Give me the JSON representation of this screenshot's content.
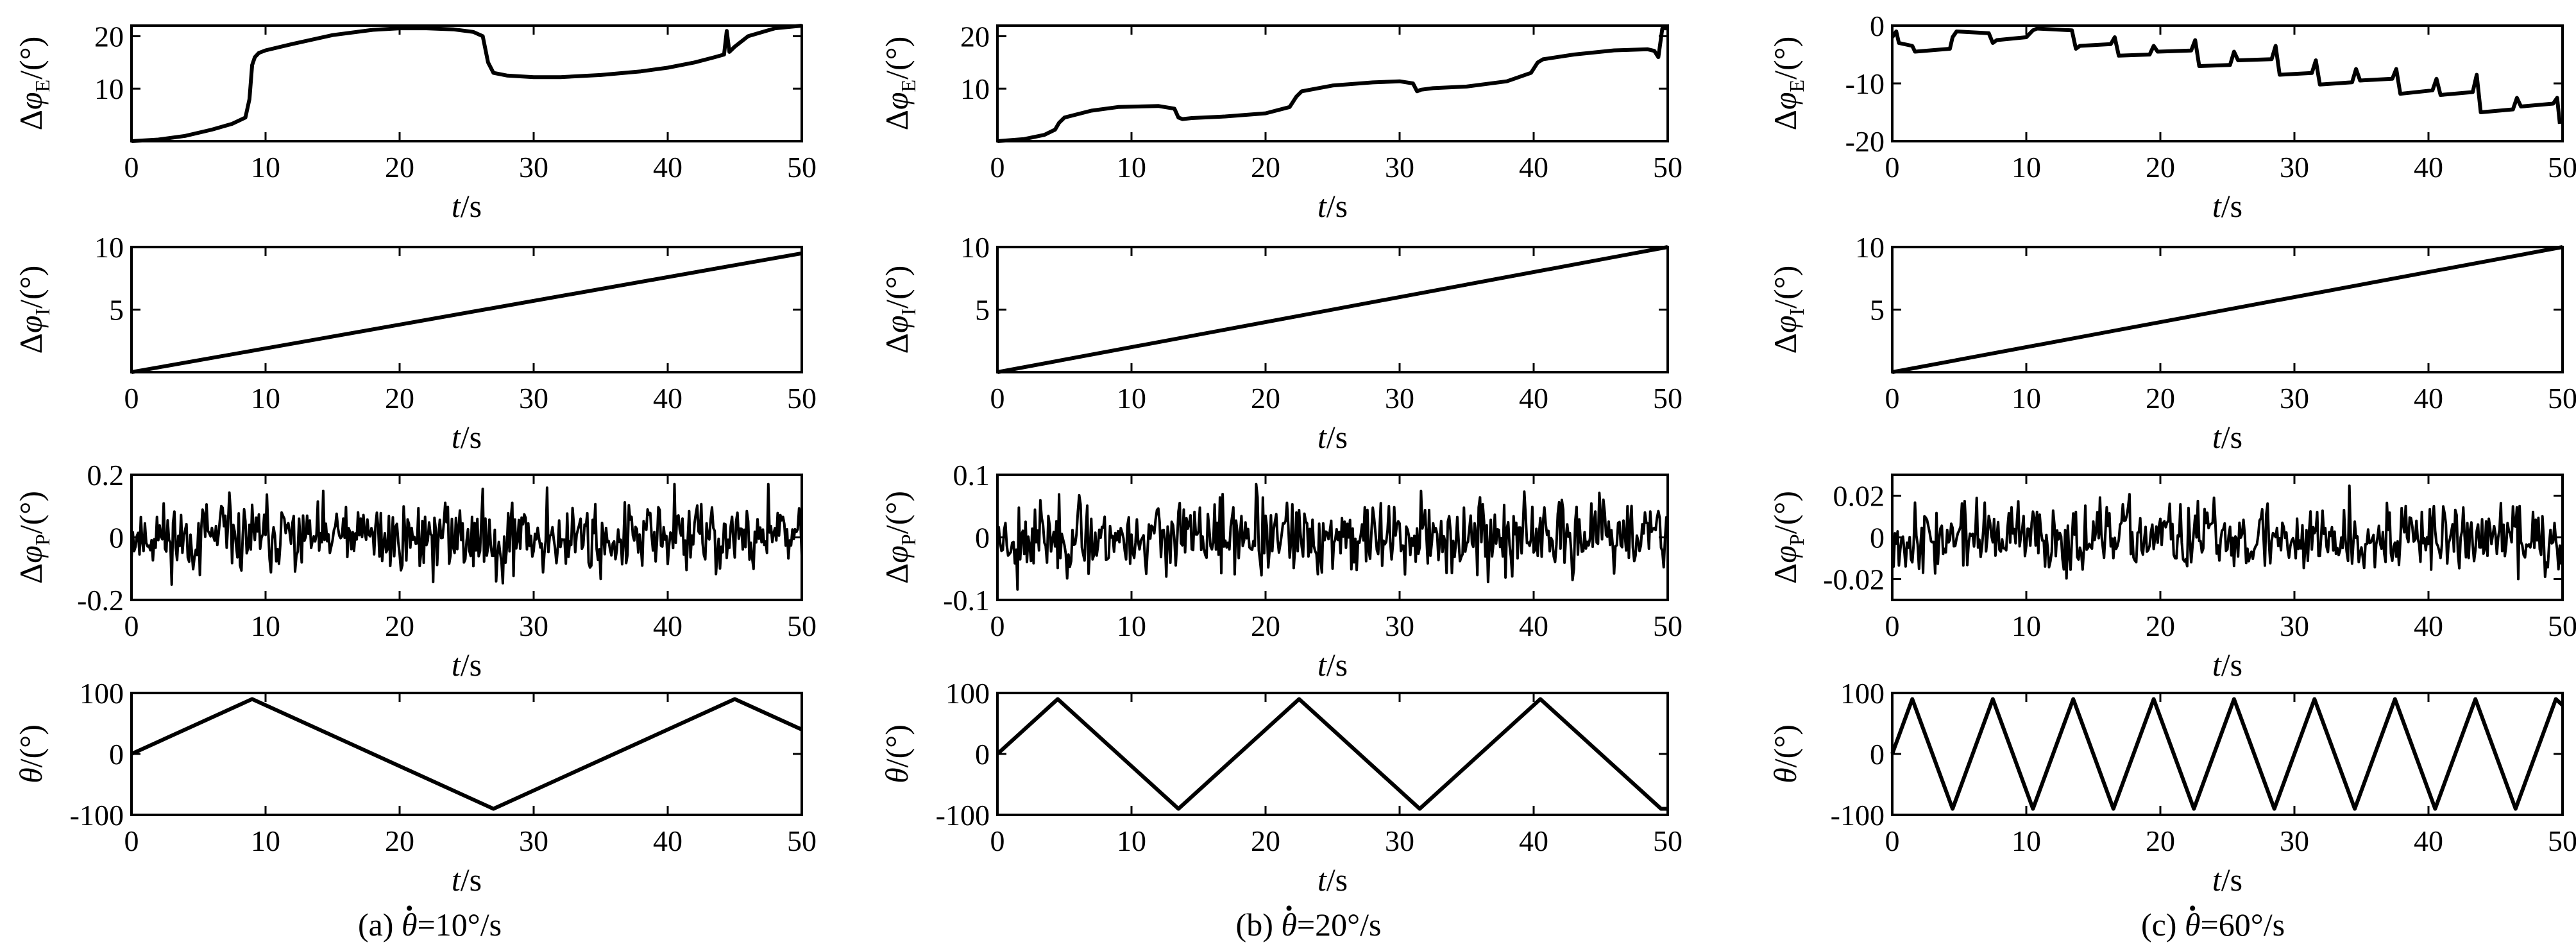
{
  "chart_data": [
    {
      "id": "a1",
      "type": "line",
      "ylabel": {
        "sym": "Δφ",
        "sub": "E",
        "unit": "/(°)"
      },
      "xlabel": "t/s",
      "xlim": [
        0,
        50
      ],
      "ylim": [
        0,
        22
      ],
      "xticks": [
        0,
        10,
        20,
        30,
        40,
        50
      ],
      "yticks": [
        10,
        20
      ],
      "ytick_labels": [
        "10",
        "20"
      ],
      "series": [
        {
          "x": [
            0,
            2,
            4,
            6,
            7.5,
            8.5,
            8.8,
            9.0,
            9.2,
            9.5,
            10,
            12,
            15,
            18,
            20,
            22,
            24,
            25.5,
            26.2,
            26.6,
            27,
            28,
            30,
            32,
            35,
            38,
            40,
            42,
            43.5,
            44.2,
            44.4,
            44.6,
            45,
            46,
            48,
            50
          ],
          "y": [
            0,
            0.3,
            1.0,
            2.2,
            3.3,
            4.5,
            8,
            14.5,
            16,
            16.8,
            17.3,
            18.5,
            20.2,
            21.2,
            21.5,
            21.5,
            21.3,
            20.8,
            20,
            15,
            13,
            12.5,
            12.2,
            12.2,
            12.6,
            13.3,
            14,
            15,
            16,
            16.5,
            21,
            17,
            18,
            20,
            21.5,
            22
          ]
        }
      ]
    },
    {
      "id": "a2",
      "type": "line",
      "ylabel": {
        "sym": "Δφ",
        "sub": "I",
        "unit": "/(°)"
      },
      "xlabel": "t/s",
      "xlim": [
        0,
        50
      ],
      "ylim": [
        0,
        10
      ],
      "xticks": [
        0,
        10,
        20,
        30,
        40,
        50
      ],
      "yticks": [
        5,
        10
      ],
      "ytick_labels": [
        "5",
        "10"
      ],
      "series": [
        {
          "x": [
            0,
            50
          ],
          "y": [
            0,
            9.5
          ]
        }
      ]
    },
    {
      "id": "a3",
      "type": "line",
      "ylabel": {
        "sym": "Δφ",
        "sub": "P",
        "unit": "/(°)"
      },
      "xlabel": "t/s",
      "xlim": [
        0,
        50
      ],
      "ylim": [
        -0.2,
        0.2
      ],
      "xticks": [
        0,
        10,
        20,
        30,
        40,
        50
      ],
      "yticks": [
        -0.2,
        0,
        0.2
      ],
      "ytick_labels": [
        "-0.2",
        "0",
        "0.2"
      ],
      "series": [
        {
          "noise": {
            "n": 500,
            "amp": 0.055,
            "max": 0.17,
            "seed": 11
          }
        }
      ]
    },
    {
      "id": "a4",
      "type": "line",
      "ylabel": {
        "sym": "θ",
        "sub": "",
        "unit": "/(°)"
      },
      "xlabel": "t/s",
      "xlim": [
        0,
        50
      ],
      "ylim": [
        -100,
        100
      ],
      "xticks": [
        0,
        10,
        20,
        30,
        40,
        50
      ],
      "yticks": [
        -100,
        0,
        100
      ],
      "ytick_labels": [
        "-100",
        "0",
        "100"
      ],
      "series": [
        {
          "x": [
            0,
            9,
            27,
            45,
            50
          ],
          "y": [
            0,
            90,
            -90,
            90,
            40
          ]
        }
      ]
    },
    {
      "id": "b1",
      "type": "line",
      "ylabel": {
        "sym": "Δφ",
        "sub": "E",
        "unit": "/(°)"
      },
      "xlabel": "t/s",
      "xlim": [
        0,
        50
      ],
      "ylim": [
        0,
        22
      ],
      "xticks": [
        0,
        10,
        20,
        30,
        40,
        50
      ],
      "yticks": [
        10,
        20
      ],
      "ytick_labels": [
        "10",
        "20"
      ],
      "series": [
        {
          "x": [
            0,
            2,
            3.5,
            4.3,
            4.6,
            5,
            7,
            9,
            12,
            13.2,
            13.5,
            13.8,
            14.5,
            17,
            20,
            21.8,
            22.3,
            22.7,
            25,
            28,
            30,
            31,
            31.3,
            31.6,
            32.5,
            35,
            38,
            39.8,
            40.3,
            40.7,
            43,
            46,
            48.5,
            49,
            49.3,
            49.6,
            50
          ],
          "y": [
            0,
            0.4,
            1.2,
            2.2,
            3.5,
            4.5,
            5.8,
            6.5,
            6.7,
            6.2,
            4.5,
            4.2,
            4.4,
            4.7,
            5.3,
            6.5,
            8.5,
            9.5,
            10.6,
            11.2,
            11.4,
            11,
            9.5,
            9.8,
            10.1,
            10.4,
            11.4,
            13,
            15,
            15.6,
            16.5,
            17.3,
            17.5,
            17.2,
            16,
            21.5,
            21.5
          ]
        }
      ]
    },
    {
      "id": "b2",
      "type": "line",
      "ylabel": {
        "sym": "Δφ",
        "sub": "I",
        "unit": "/(°)"
      },
      "xlabel": "t/s",
      "xlim": [
        0,
        50
      ],
      "ylim": [
        0,
        10
      ],
      "xticks": [
        0,
        10,
        20,
        30,
        40,
        50
      ],
      "yticks": [
        5,
        10
      ],
      "ytick_labels": [
        "5",
        "10"
      ],
      "series": [
        {
          "x": [
            0,
            50
          ],
          "y": [
            0,
            10
          ]
        }
      ]
    },
    {
      "id": "b3",
      "type": "line",
      "ylabel": {
        "sym": "Δφ",
        "sub": "P",
        "unit": "/(°)"
      },
      "xlabel": "t/s",
      "xlim": [
        0,
        50
      ],
      "ylim": [
        -0.1,
        0.1
      ],
      "xticks": [
        0,
        10,
        20,
        30,
        40,
        50
      ],
      "yticks": [
        -0.1,
        0,
        0.1
      ],
      "ytick_labels": [
        "-0.1",
        "0",
        "0.1"
      ],
      "series": [
        {
          "noise": {
            "n": 500,
            "amp": 0.028,
            "max": 0.085,
            "seed": 23
          }
        }
      ]
    },
    {
      "id": "b4",
      "type": "line",
      "ylabel": {
        "sym": "θ",
        "sub": "",
        "unit": "/(°)"
      },
      "xlabel": "t/s",
      "xlim": [
        0,
        50
      ],
      "ylim": [
        -100,
        100
      ],
      "xticks": [
        0,
        10,
        20,
        30,
        40,
        50
      ],
      "yticks": [
        -100,
        0,
        100
      ],
      "ytick_labels": [
        "-100",
        "0",
        "100"
      ],
      "series": [
        {
          "x": [
            0,
            4.5,
            13.5,
            22.5,
            31.5,
            40.5,
            49.5,
            50
          ],
          "y": [
            0,
            90,
            -90,
            90,
            -90,
            90,
            -90,
            -90
          ]
        }
      ]
    },
    {
      "id": "c1",
      "type": "line",
      "ylabel": {
        "sym": "Δφ",
        "sub": "E",
        "unit": "/(°)"
      },
      "xlabel": "t/s",
      "xlim": [
        0,
        50
      ],
      "ylim": [
        -20,
        0
      ],
      "xticks": [
        0,
        10,
        20,
        30,
        40,
        50
      ],
      "yticks": [
        -20,
        -10,
        0
      ],
      "ytick_labels": [
        "-20",
        "-10",
        "0"
      ],
      "series": [
        {
          "x": [
            0,
            0.3,
            0.5,
            1.5,
            1.7,
            4.3,
            4.5,
            4.8,
            7.2,
            7.5,
            7.8,
            10,
            10.5,
            10.8,
            13.4,
            13.7,
            14,
            16.3,
            16.6,
            16.9,
            19.2,
            19.5,
            19.8,
            22.3,
            22.6,
            22.9,
            25.2,
            25.5,
            25.8,
            28.3,
            28.6,
            28.9,
            31.3,
            31.6,
            31.9,
            34.3,
            34.6,
            34.9,
            37.3,
            37.6,
            37.9,
            40.3,
            40.6,
            40.9,
            43.3,
            43.6,
            43.9,
            46.3,
            46.6,
            46.9,
            49.3,
            49.6,
            49.8
          ],
          "y": [
            -2,
            -1,
            -3,
            -3.5,
            -4.5,
            -4,
            -2,
            -1,
            -1.3,
            -3,
            -2.5,
            -2,
            -0.8,
            -0.5,
            -0.8,
            -4,
            -3.5,
            -3.2,
            -2,
            -5.2,
            -5,
            -3.5,
            -4.5,
            -4.3,
            -2.5,
            -7,
            -6.8,
            -4.5,
            -6,
            -5.8,
            -3.5,
            -8.5,
            -8.2,
            -6,
            -10.2,
            -9.8,
            -7.5,
            -9.5,
            -9.2,
            -7.5,
            -11.8,
            -11.2,
            -9.2,
            -12,
            -11.5,
            -8.5,
            -15,
            -14.5,
            -12.5,
            -14,
            -13.5,
            -12.5,
            -17
          ]
        }
      ]
    },
    {
      "id": "c2",
      "type": "line",
      "ylabel": {
        "sym": "Δφ",
        "sub": "I",
        "unit": "/(°)"
      },
      "xlabel": "t/s",
      "xlim": [
        0,
        50
      ],
      "ylim": [
        0,
        10
      ],
      "xticks": [
        0,
        10,
        20,
        30,
        40,
        50
      ],
      "yticks": [
        5,
        10
      ],
      "ytick_labels": [
        "5",
        "10"
      ],
      "series": [
        {
          "x": [
            0,
            50
          ],
          "y": [
            0,
            10
          ]
        }
      ]
    },
    {
      "id": "c3",
      "type": "line",
      "ylabel": {
        "sym": "Δφ",
        "sub": "P",
        "unit": "/(°)"
      },
      "xlabel": "t/s",
      "xlim": [
        0,
        50
      ],
      "ylim": [
        -0.03,
        0.03
      ],
      "xticks": [
        0,
        10,
        20,
        30,
        40,
        50
      ],
      "yticks": [
        -0.02,
        0,
        0.02
      ],
      "ytick_labels": [
        "-0.02",
        "0",
        "0.02"
      ],
      "series": [
        {
          "noise": {
            "n": 500,
            "amp": 0.008,
            "max": 0.029,
            "seed": 37
          }
        }
      ]
    },
    {
      "id": "c4",
      "type": "line",
      "ylabel": {
        "sym": "θ",
        "sub": "",
        "unit": "/(°)"
      },
      "xlabel": "t/s",
      "xlim": [
        0,
        50
      ],
      "ylim": [
        -100,
        100
      ],
      "xticks": [
        0,
        10,
        20,
        30,
        40,
        50
      ],
      "yticks": [
        -100,
        0,
        100
      ],
      "ytick_labels": [
        "-100",
        "0",
        "100"
      ],
      "series": [
        {
          "x": [
            0,
            1.5,
            4.5,
            7.5,
            10.5,
            13.5,
            16.5,
            19.5,
            22.5,
            25.5,
            28.5,
            31.5,
            34.5,
            37.5,
            40.5,
            43.5,
            46.5,
            49.5,
            50
          ],
          "y": [
            0,
            90,
            -90,
            90,
            -90,
            90,
            -90,
            90,
            -90,
            90,
            -90,
            90,
            -90,
            90,
            -90,
            90,
            -90,
            90,
            80
          ]
        }
      ]
    }
  ],
  "captions": {
    "a": {
      "prefix": "(a) ",
      "sym": "θ",
      "value": "=10°/s"
    },
    "b": {
      "prefix": "(b) ",
      "sym": "θ",
      "value": "=20°/s"
    },
    "c": {
      "prefix": "(c) ",
      "sym": "θ",
      "value": "=60°/s"
    }
  }
}
